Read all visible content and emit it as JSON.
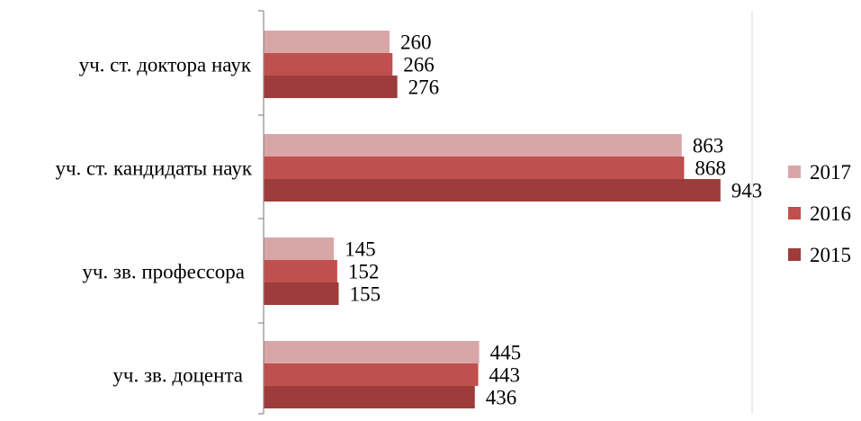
{
  "chart_data": {
    "type": "bar",
    "orientation": "horizontal",
    "categories": [
      "уч. ст. доктора наук",
      "уч. ст. кандидаты наук",
      "уч. зв. профессора",
      "уч. зв. доцента"
    ],
    "series": [
      {
        "name": "2017",
        "color": "#d9a6a8",
        "values": [
          260,
          863,
          145,
          445
        ]
      },
      {
        "name": "2016",
        "color": "#c0504d",
        "values": [
          266,
          868,
          152,
          443
        ]
      },
      {
        "name": "2015",
        "color": "#9c3d3b",
        "values": [
          276,
          943,
          155,
          436
        ]
      }
    ],
    "xlim": [
      0,
      1000
    ],
    "grid": false,
    "legend_position": "right",
    "data_labels": true
  }
}
